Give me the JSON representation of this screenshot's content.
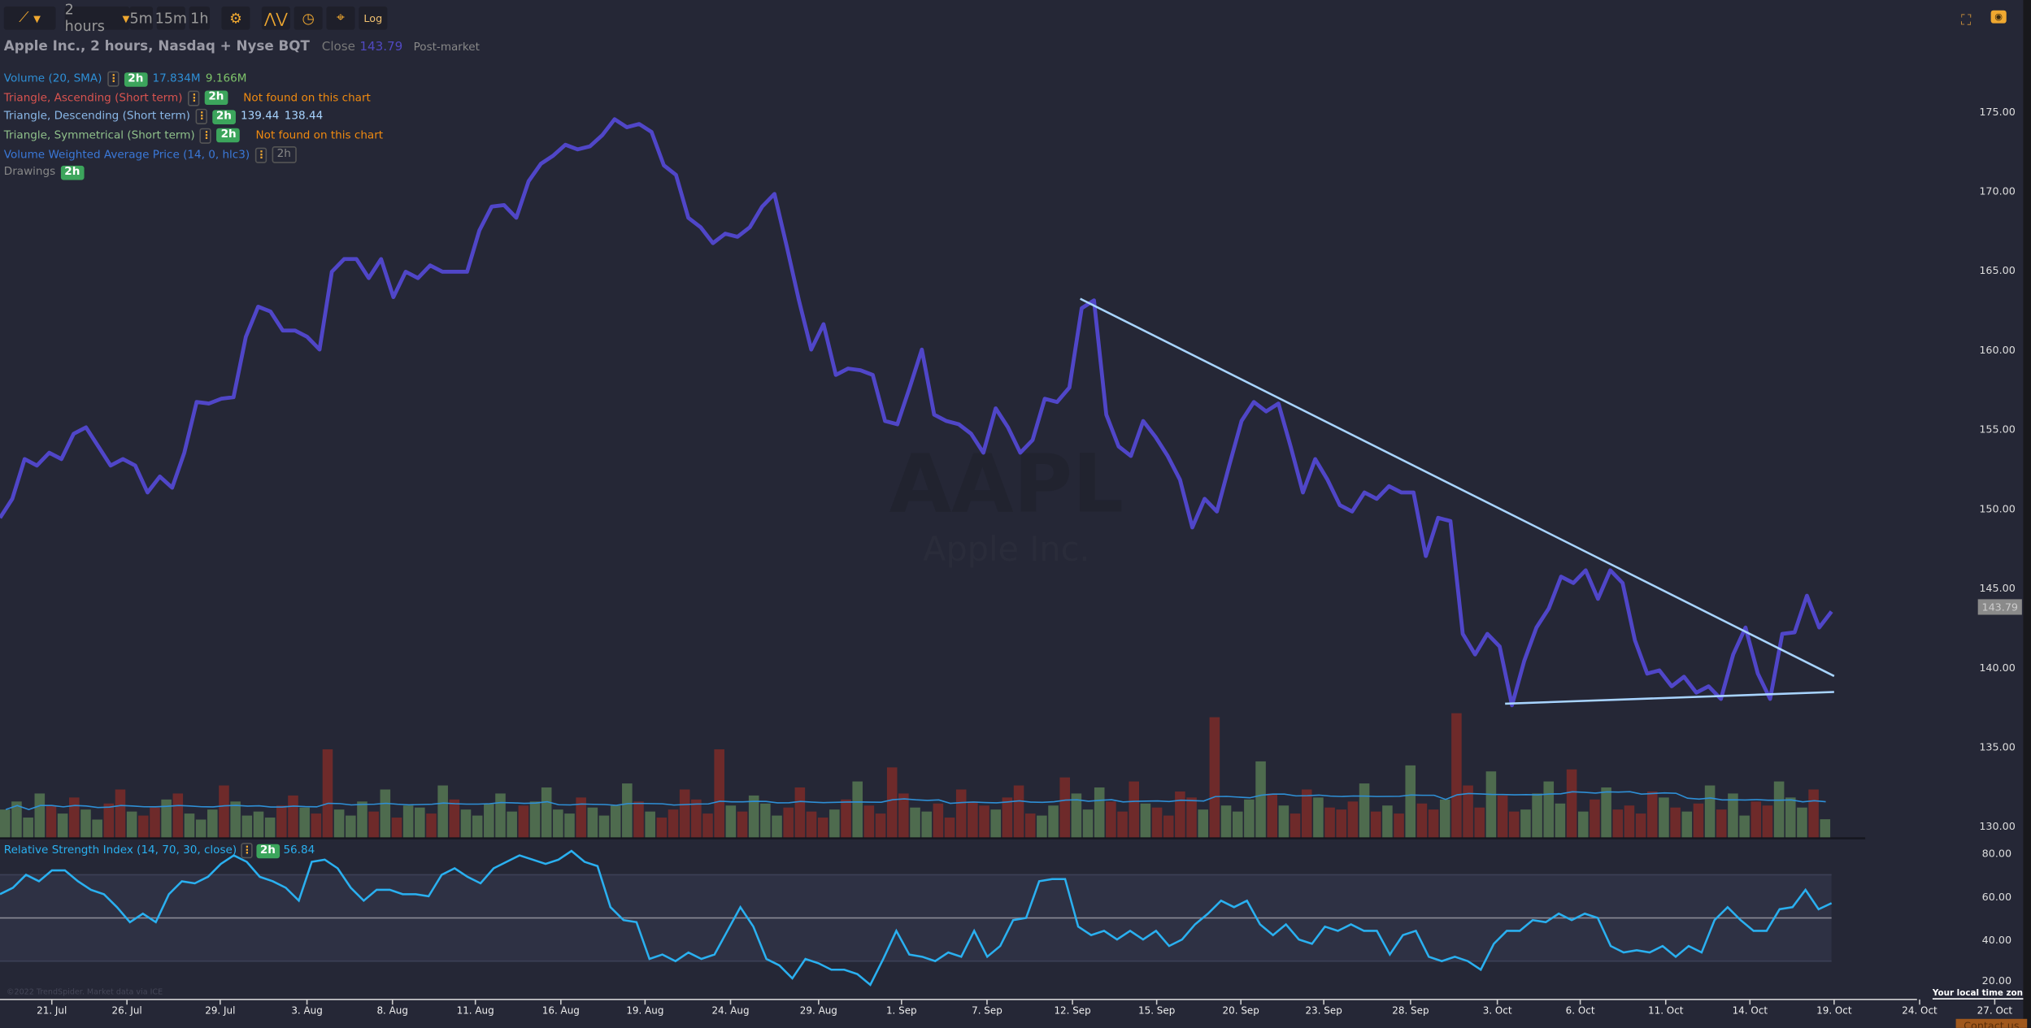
{
  "toolbar": {
    "chart_type_icon": "line-chart-icon",
    "interval": "2 hours",
    "intervals": [
      "5m",
      "15m",
      "1h"
    ],
    "settings_icon": "gear-icon",
    "indicators_icon": "indicator-icon",
    "clock_icon": "clock-icon",
    "crosshair_icon": "crosshair-icon",
    "log_label": "Log",
    "fullscreen_icon": "fullscreen-icon",
    "screenshot_icon": "camera-icon"
  },
  "header": {
    "title": "Apple Inc., 2 hours, Nasdaq + Nyse BQT",
    "close_label": "Close",
    "close_value": "143.79",
    "session": "Post-market"
  },
  "legend": [
    {
      "label": "Volume (20, SMA)",
      "color": "#2e8fd6",
      "tag": "2h",
      "values": [
        "17.834M",
        "9.166M"
      ],
      "value_colors": [
        "#2e8fd6",
        "#7ec46a"
      ]
    },
    {
      "label": "Triangle, Ascending (Short term)",
      "color": "#d9534f",
      "tag": "2h",
      "note": "Not found on this chart"
    },
    {
      "label": "Triangle, Descending (Short term)",
      "color": "#8ab8e8",
      "tag": "2h",
      "values": [
        "139.44",
        "138.44"
      ],
      "value_colors": [
        "#a8d4ff",
        "#a8d4ff"
      ]
    },
    {
      "label": "Triangle, Symmetrical (Short term)",
      "color": "#8fc08a",
      "tag": "2h",
      "note": "Not found on this chart"
    },
    {
      "label": "Volume Weighted Average Price (14, 0, hlc3)",
      "color": "#3a78d8",
      "tag": "2h",
      "tag_active": false
    },
    {
      "label": "Drawings",
      "color": "#888888",
      "tag": "2h"
    }
  ],
  "watermark": {
    "symbol": "AAPL",
    "name": "Apple Inc."
  },
  "rsi_legend": {
    "label": "Relative Strength Index (14, 70, 30, close)",
    "tag": "2h",
    "value": "56.84"
  },
  "copyright": "©2022 TrendSpider. Market data via ICE",
  "timezone_label": "Your local time zone",
  "contact_label": "Contact us",
  "last_price_label": "143.79",
  "colors": {
    "background": "#252736",
    "price_line": "#5046c8",
    "trendline": "#a8d4ff",
    "rsi_line": "#2ab0f0",
    "volume_up": "#4e6b4e",
    "volume_down": "#6e2a2a",
    "volume_sma": "#2e8fd6"
  },
  "chart_data": {
    "type": "line",
    "symbol": "AAPL",
    "price_axis": {
      "ticks": [
        "175.00",
        "170.00",
        "165.00",
        "160.00",
        "155.00",
        "150.00",
        "145.00",
        "140.00",
        "135.00",
        "130.00"
      ],
      "range": [
        130,
        175
      ]
    },
    "x_ticks": [
      "21. Jul",
      "26. Jul",
      "29. Jul",
      "3. Aug",
      "8. Aug",
      "11. Aug",
      "16. Aug",
      "19. Aug",
      "24. Aug",
      "29. Aug",
      "1. Sep",
      "7. Sep",
      "12. Sep",
      "15. Sep",
      "20. Sep",
      "23. Sep",
      "28. Sep",
      "3. Oct",
      "6. Oct",
      "11. Oct",
      "14. Oct",
      "19. Oct",
      "24. Oct",
      "27. Oct"
    ],
    "close": [
      149.4,
      150.6,
      153.1,
      152.7,
      153.5,
      153.1,
      154.7,
      155.1,
      153.9,
      152.7,
      153.1,
      152.7,
      151.0,
      152.0,
      151.3,
      153.5,
      156.7,
      156.6,
      156.9,
      157.0,
      160.8,
      162.7,
      162.4,
      161.2,
      161.2,
      160.8,
      160.0,
      164.9,
      165.7,
      165.7,
      164.5,
      165.7,
      163.3,
      164.9,
      164.5,
      165.3,
      164.9,
      164.9,
      164.9,
      167.5,
      169.0,
      169.1,
      168.3,
      170.6,
      171.7,
      172.2,
      172.9,
      172.6,
      172.8,
      173.5,
      174.5,
      174.0,
      174.2,
      173.7,
      171.6,
      171.0,
      168.3,
      167.7,
      166.7,
      167.3,
      167.1,
      167.7,
      169.0,
      169.8,
      166.5,
      163.1,
      160.0,
      161.6,
      158.4,
      158.8,
      158.7,
      158.4,
      155.5,
      155.3,
      157.6,
      160.0,
      155.9,
      155.5,
      155.3,
      154.7,
      153.5,
      156.3,
      155.1,
      153.5,
      154.3,
      156.9,
      156.7,
      157.6,
      162.6,
      163.1,
      155.9,
      153.9,
      153.3,
      155.5,
      154.5,
      153.3,
      151.8,
      148.8,
      150.6,
      149.8,
      152.7,
      155.5,
      156.7,
      156.1,
      156.6,
      153.9,
      151.0,
      153.1,
      151.8,
      150.2,
      149.8,
      151.0,
      150.6,
      151.4,
      151.0,
      151.0,
      147.0,
      149.4,
      149.2,
      142.1,
      140.8,
      142.1,
      141.3,
      137.6,
      140.4,
      142.5,
      143.7,
      145.7,
      145.3,
      146.1,
      144.3,
      146.1,
      145.3,
      141.7,
      139.6,
      139.8,
      138.8,
      139.4,
      138.4,
      138.8,
      138.0,
      140.8,
      142.5,
      139.6,
      138.0,
      142.1,
      142.2,
      144.5,
      142.5,
      143.5
    ],
    "trendlines": [
      {
        "name": "Triangle, Descending resistance",
        "from": "12. Sep",
        "from_price": 163.2,
        "to": "19. Oct",
        "to_price": 139.44
      },
      {
        "name": "Triangle, Descending support",
        "from": "3. Oct",
        "from_price": 137.7,
        "to": "19. Oct",
        "to_price": 138.44
      }
    ],
    "volume_millions": [
      14,
      18,
      10,
      22,
      16,
      12,
      20,
      14,
      9,
      17,
      24,
      13,
      11,
      15,
      19,
      22,
      12,
      9,
      14,
      26,
      18,
      11,
      13,
      10,
      16,
      21,
      15,
      12,
      44,
      14,
      11,
      18,
      13,
      24,
      10,
      16,
      15,
      12,
      26,
      19,
      14,
      11,
      17,
      22,
      13,
      16,
      18,
      25,
      14,
      12,
      20,
      15,
      11,
      16,
      27,
      18,
      13,
      10,
      14,
      24,
      19,
      12,
      44,
      16,
      13,
      21,
      17,
      11,
      15,
      25,
      13,
      10,
      14,
      19,
      28,
      16,
      12,
      35,
      22,
      15,
      13,
      17,
      10,
      24,
      18,
      16,
      14,
      20,
      26,
      12,
      11,
      16,
      30,
      22,
      14,
      25,
      18,
      13,
      28,
      17,
      15,
      11,
      23,
      20,
      14,
      60,
      16,
      13,
      19,
      38,
      22,
      16,
      12,
      24,
      20,
      15,
      14,
      18,
      27,
      13,
      16,
      12,
      36,
      17,
      14,
      19,
      62,
      26,
      15,
      33,
      21,
      13,
      14,
      22,
      28,
      17,
      34,
      13,
      19,
      25,
      14,
      16,
      12,
      23,
      20,
      15,
      13,
      17,
      26,
      14,
      22,
      11,
      18,
      16,
      28,
      20,
      15,
      24,
      9.166
    ],
    "volume_sma_last": 17.834,
    "rsi": {
      "label": "Relative Strength Index (14, 70, 30, close)",
      "ticks": [
        "80.00",
        "60.00",
        "40.00",
        "20.00"
      ],
      "range": [
        20,
        80
      ],
      "levels": [
        70,
        50,
        30
      ],
      "values": [
        61,
        64,
        70,
        67,
        72,
        72,
        67,
        63,
        61,
        55,
        48,
        52,
        48,
        61,
        67,
        66,
        69,
        75,
        79,
        76,
        69,
        67,
        64,
        58,
        76,
        77,
        73,
        64,
        58,
        63,
        63,
        61,
        61,
        60,
        70,
        73,
        69,
        66,
        73,
        76,
        79,
        77,
        75,
        77,
        81,
        76,
        74,
        55,
        49,
        48,
        31,
        33,
        30,
        34,
        31,
        33,
        44,
        55,
        46,
        31,
        28,
        22,
        31,
        29,
        26,
        26,
        24,
        19,
        31,
        44,
        33,
        32,
        30,
        34,
        32,
        44,
        32,
        37,
        49,
        50,
        67,
        68,
        68,
        46,
        42,
        44,
        40,
        44,
        40,
        44,
        37,
        40,
        47,
        52,
        58,
        55,
        58,
        47,
        42,
        47,
        40,
        38,
        46,
        44,
        47,
        44,
        44,
        33,
        42,
        44,
        32,
        30,
        32,
        30,
        26,
        38,
        44,
        44,
        49,
        48,
        52,
        49,
        52,
        50,
        37,
        34,
        35,
        34,
        37,
        32,
        37,
        34,
        49,
        55,
        49,
        44,
        44,
        54,
        55,
        63,
        54,
        56.84
      ]
    }
  }
}
